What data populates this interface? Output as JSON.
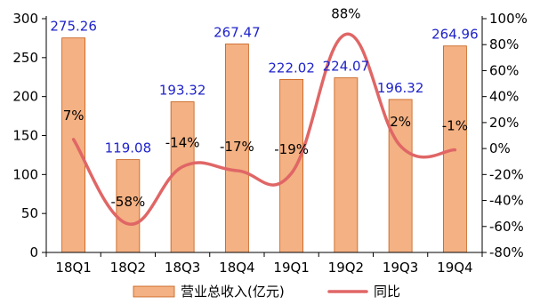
{
  "chart_data": {
    "type": "bar",
    "categories": [
      "18Q1",
      "18Q2",
      "18Q3",
      "18Q4",
      "19Q1",
      "19Q2",
      "19Q3",
      "19Q4"
    ],
    "series": [
      {
        "name": "营业总收入(亿元)",
        "type": "bar",
        "axis": "left",
        "values": [
          275.26,
          119.08,
          193.32,
          267.47,
          222.02,
          224.07,
          196.32,
          264.96
        ],
        "labels": [
          "275.26",
          "119.08",
          "193.32",
          "267.47",
          "222.02",
          "224.07",
          "196.32",
          "264.96"
        ]
      },
      {
        "name": "同比",
        "type": "line",
        "axis": "right",
        "values": [
          7,
          -58,
          -14,
          -17,
          -19,
          88,
          2,
          -1
        ],
        "labels": [
          "7%",
          "-58%",
          "-14%",
          "-17%",
          "-19%",
          "88%",
          "2%",
          "-1%"
        ]
      }
    ],
    "y_left": {
      "min": 0,
      "max": 300,
      "ticks": [
        "0",
        "50",
        "100",
        "150",
        "200",
        "250",
        "300"
      ]
    },
    "y_right": {
      "min": -80,
      "max": 100,
      "ticks": [
        "-80%",
        "-60%",
        "-40%",
        "-20%",
        "0%",
        "20%",
        "40%",
        "60%",
        "80%",
        "100%"
      ]
    },
    "colors": {
      "bar": "#f4b183",
      "bar_stroke": "#c55a11",
      "line": "#e06666",
      "value_label": "#1f23c9",
      "axis": "#000000"
    },
    "legend": {
      "position": "bottom"
    },
    "grid": false
  }
}
